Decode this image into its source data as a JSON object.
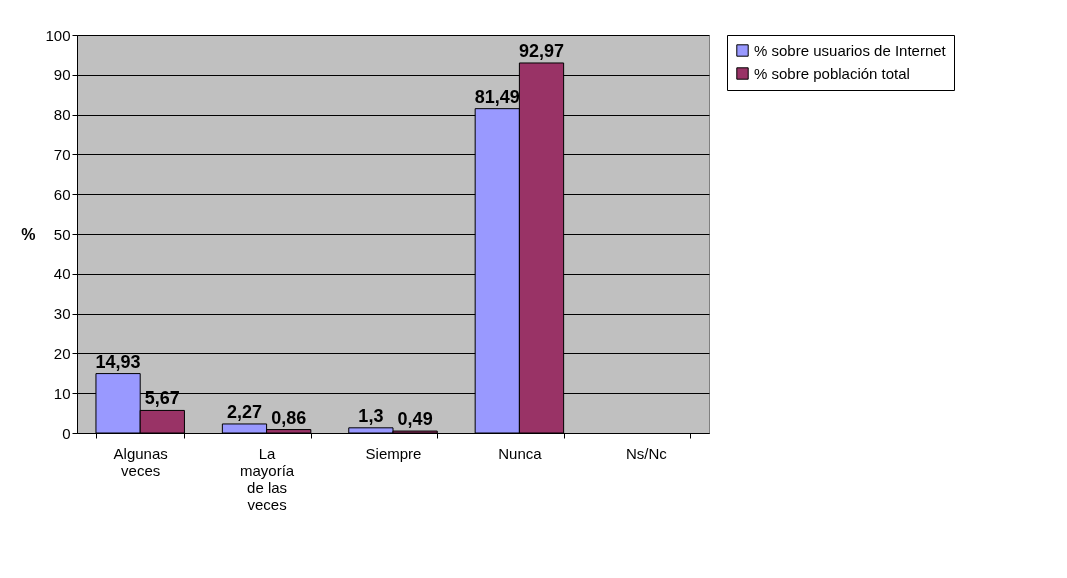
{
  "chart_data": {
    "type": "bar",
    "ylabel": "%",
    "categories": [
      "Algunas veces",
      "La mayoría de las veces",
      "Siempre",
      "Nunca",
      "Ns/Nc"
    ],
    "series": [
      {
        "name": "% sobre usuarios de Internet",
        "color": "#9999ff",
        "values": [
          14.93,
          2.27,
          1.3,
          81.49,
          null
        ],
        "value_labels": [
          "14,93",
          "2,27",
          "1,3",
          "81,49",
          null
        ]
      },
      {
        "name": "% sobre población total",
        "color": "#993366",
        "values": [
          5.67,
          0.86,
          0.49,
          92.97,
          null
        ],
        "value_labels": [
          "5,67",
          "0,86",
          "0,49",
          "92,97",
          null
        ]
      }
    ],
    "ylim": [
      0,
      100
    ],
    "yticks": [
      0,
      10,
      20,
      30,
      40,
      50,
      60,
      70,
      80,
      90,
      100
    ],
    "grid": "y",
    "legend": "right"
  }
}
